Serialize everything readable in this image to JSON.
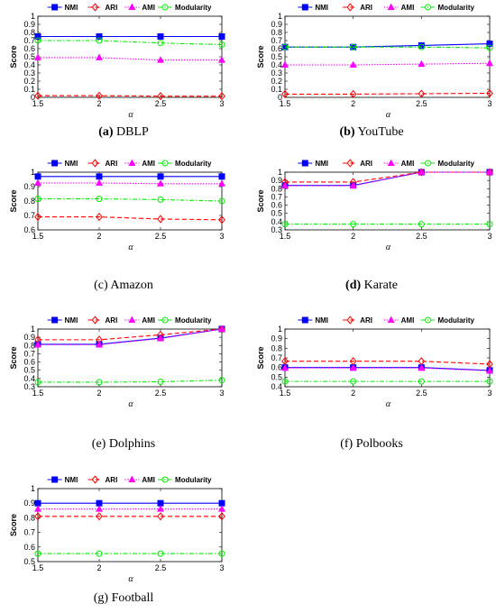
{
  "legend": [
    "NMI",
    "ARI",
    "AMI",
    "Modularity"
  ],
  "colors": {
    "NMI": "#0000ff",
    "ARI": "#ff0000",
    "AMI": "#ff00ff",
    "Modularity": "#00ee00"
  },
  "markers": {
    "NMI": "square",
    "ARI": "diamond",
    "AMI": "triangle",
    "Modularity": "circle"
  },
  "chart_data": [
    {
      "type": "line",
      "caption_label": "(a)",
      "caption_name": "DBLP",
      "caption_label_bold": true,
      "xlabel": "α",
      "ylabel": "Score",
      "x": [
        1.5,
        2,
        2.5,
        3
      ],
      "xticks": [
        "1.5",
        "2",
        "2.5",
        "3"
      ],
      "xlim": [
        1.5,
        3
      ],
      "ylim": [
        0,
        1
      ],
      "yticks": [
        "0",
        "0.1",
        "0.2",
        "0.3",
        "0.4",
        "0.5",
        "0.6",
        "0.7",
        "0.8",
        "0.9",
        "1"
      ],
      "series": [
        {
          "name": "NMI",
          "values": [
            0.75,
            0.75,
            0.75,
            0.75
          ]
        },
        {
          "name": "ARI",
          "values": [
            0.02,
            0.02,
            0.015,
            0.015
          ]
        },
        {
          "name": "AMI",
          "values": [
            0.49,
            0.49,
            0.46,
            0.46
          ]
        },
        {
          "name": "Modularity",
          "values": [
            0.7,
            0.7,
            0.67,
            0.65
          ]
        }
      ]
    },
    {
      "type": "line",
      "caption_label": "(b)",
      "caption_name": "YouTube",
      "caption_label_bold": true,
      "xlabel": "α",
      "ylabel": "Score",
      "x": [
        1.5,
        2,
        2.5,
        3
      ],
      "xticks": [
        "1.5",
        "2",
        "2.5",
        "3"
      ],
      "xlim": [
        1.5,
        3
      ],
      "ylim": [
        0,
        1
      ],
      "yticks": [
        "0",
        "0.1",
        "0.2",
        "0.3",
        "0.4",
        "0.5",
        "0.6",
        "0.7",
        "0.8",
        "0.9",
        "1"
      ],
      "series": [
        {
          "name": "NMI",
          "values": [
            0.62,
            0.62,
            0.64,
            0.66
          ]
        },
        {
          "name": "ARI",
          "values": [
            0.04,
            0.04,
            0.045,
            0.05
          ]
        },
        {
          "name": "AMI",
          "values": [
            0.4,
            0.4,
            0.41,
            0.42
          ]
        },
        {
          "name": "Modularity",
          "values": [
            0.62,
            0.62,
            0.62,
            0.61
          ]
        }
      ]
    },
    {
      "type": "line",
      "caption_label": "(c)",
      "caption_name": "Amazon",
      "caption_label_bold": false,
      "xlabel": "α",
      "ylabel": "Score",
      "x": [
        1.5,
        2,
        2.5,
        3
      ],
      "xticks": [
        "1.5",
        "2",
        "2.5",
        "3"
      ],
      "xlim": [
        1.5,
        3
      ],
      "ylim": [
        0.6,
        1
      ],
      "yticks": [
        "0.6",
        "0.7",
        "0.8",
        "0.9",
        "1"
      ],
      "series": [
        {
          "name": "NMI",
          "values": [
            0.97,
            0.97,
            0.97,
            0.97
          ]
        },
        {
          "name": "ARI",
          "values": [
            0.69,
            0.69,
            0.675,
            0.67
          ]
        },
        {
          "name": "AMI",
          "values": [
            0.925,
            0.925,
            0.92,
            0.92
          ]
        },
        {
          "name": "Modularity",
          "values": [
            0.815,
            0.815,
            0.81,
            0.8
          ]
        }
      ]
    },
    {
      "type": "line",
      "caption_label": "(d)",
      "caption_name": "Karate",
      "caption_label_bold": true,
      "xlabel": "α",
      "ylabel": "Score",
      "x": [
        1.5,
        2,
        2.5,
        3
      ],
      "xticks": [
        "1.5",
        "2",
        "2.5",
        "3"
      ],
      "xlim": [
        1.5,
        3
      ],
      "ylim": [
        0.3,
        1
      ],
      "yticks": [
        "0.3",
        "0.4",
        "0.5",
        "0.6",
        "0.7",
        "0.8",
        "0.9",
        "1"
      ],
      "series": [
        {
          "name": "NMI",
          "values": [
            0.84,
            0.84,
            1.0,
            1.0
          ]
        },
        {
          "name": "ARI",
          "values": [
            0.88,
            0.88,
            1.0,
            1.0
          ]
        },
        {
          "name": "AMI",
          "values": [
            0.835,
            0.835,
            1.0,
            1.0
          ]
        },
        {
          "name": "Modularity",
          "values": [
            0.37,
            0.37,
            0.37,
            0.37
          ]
        }
      ]
    },
    {
      "type": "line",
      "caption_label": "(e)",
      "caption_name": "Dolphins",
      "caption_label_bold": false,
      "xlabel": "α",
      "ylabel": "Score",
      "x": [
        1.5,
        2,
        2.5,
        3
      ],
      "xticks": [
        "1.5",
        "2",
        "2.5",
        "3"
      ],
      "xlim": [
        1.5,
        3
      ],
      "ylim": [
        0.3,
        1
      ],
      "yticks": [
        "0.3",
        "0.4",
        "0.5",
        "0.6",
        "0.7",
        "0.8",
        "0.9",
        "1"
      ],
      "series": [
        {
          "name": "NMI",
          "values": [
            0.815,
            0.815,
            0.89,
            1.0
          ]
        },
        {
          "name": "ARI",
          "values": [
            0.87,
            0.87,
            0.93,
            1.0
          ]
        },
        {
          "name": "AMI",
          "values": [
            0.81,
            0.81,
            0.885,
            1.0
          ]
        },
        {
          "name": "Modularity",
          "values": [
            0.355,
            0.355,
            0.36,
            0.38
          ]
        }
      ]
    },
    {
      "type": "line",
      "caption_label": "(f)",
      "caption_name": "Polbooks",
      "caption_label_bold": false,
      "xlabel": "α",
      "ylabel": "Score",
      "x": [
        1.5,
        2,
        2.5,
        3
      ],
      "xticks": [
        "1.5",
        "2",
        "2.5",
        "3"
      ],
      "xlim": [
        1.5,
        3
      ],
      "ylim": [
        0.4,
        1
      ],
      "yticks": [
        "0.4",
        "0.5",
        "0.6",
        "0.7",
        "0.8",
        "0.9",
        "1"
      ],
      "series": [
        {
          "name": "NMI",
          "values": [
            0.6,
            0.6,
            0.6,
            0.57
          ]
        },
        {
          "name": "ARI",
          "values": [
            0.665,
            0.665,
            0.665,
            0.635
          ]
        },
        {
          "name": "AMI",
          "values": [
            0.595,
            0.595,
            0.595,
            0.565
          ]
        },
        {
          "name": "Modularity",
          "values": [
            0.455,
            0.455,
            0.455,
            0.455
          ]
        }
      ]
    },
    {
      "type": "line",
      "caption_label": "(g)",
      "caption_name": "Football",
      "caption_label_bold": false,
      "xlabel": "α",
      "ylabel": "Score",
      "x": [
        1.5,
        2,
        2.5,
        3
      ],
      "xticks": [
        "1.5",
        "2",
        "2.5",
        "3"
      ],
      "xlim": [
        1.5,
        3
      ],
      "ylim": [
        0.5,
        1
      ],
      "yticks": [
        "0.5",
        "0.6",
        "0.7",
        "0.8",
        "0.9",
        "1"
      ],
      "series": [
        {
          "name": "NMI",
          "values": [
            0.9,
            0.9,
            0.9,
            0.9
          ]
        },
        {
          "name": "ARI",
          "values": [
            0.81,
            0.81,
            0.81,
            0.81
          ]
        },
        {
          "name": "AMI",
          "values": [
            0.86,
            0.86,
            0.86,
            0.86
          ]
        },
        {
          "name": "Modularity",
          "values": [
            0.555,
            0.555,
            0.555,
            0.555
          ]
        }
      ]
    }
  ]
}
